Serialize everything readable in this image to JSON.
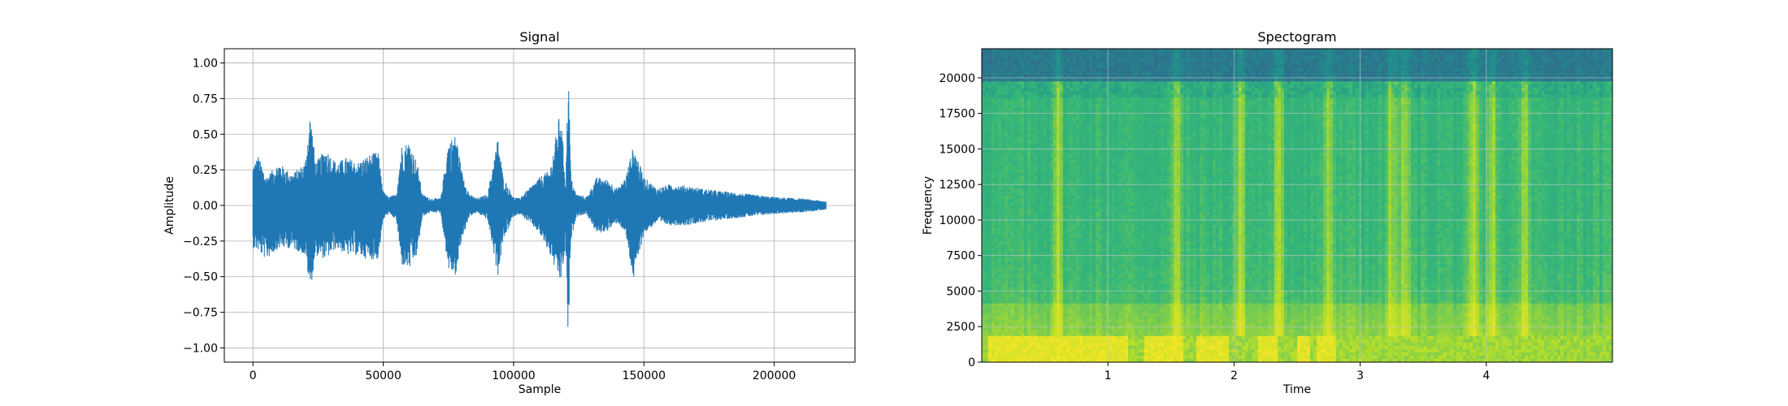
{
  "chart_data": [
    {
      "type": "line",
      "title": "Signal",
      "xlabel": "Sample",
      "ylabel": "Amplitude",
      "xlim": [
        -11000,
        231000
      ],
      "ylim": [
        -1.1,
        1.1
      ],
      "xticks": [
        0,
        50000,
        100000,
        150000,
        200000
      ],
      "xtick_labels": [
        "0",
        "50000",
        "100000",
        "150000",
        "200000"
      ],
      "yticks": [
        -1.0,
        -0.75,
        -0.5,
        -0.25,
        0.0,
        0.25,
        0.5,
        0.75,
        1.0
      ],
      "ytick_labels": [
        "−1.00",
        "−0.75",
        "−0.50",
        "−0.25",
        "0.00",
        "0.25",
        "0.50",
        "0.75",
        "1.00"
      ],
      "grid": true,
      "color": "#1f77b4",
      "envelope": {
        "x": [
          0,
          2000,
          5000,
          10000,
          15000,
          20000,
          22000,
          24000,
          28000,
          32000,
          36000,
          40000,
          44000,
          48000,
          50000,
          52000,
          55000,
          57000,
          60000,
          63000,
          65000,
          68000,
          72000,
          75000,
          78000,
          80000,
          83000,
          86000,
          90000,
          94000,
          96000,
          100000,
          102000,
          106000,
          110000,
          114000,
          118000,
          120000,
          121000,
          122000,
          124000,
          128000,
          132000,
          136000,
          140000,
          143000,
          146000,
          150000,
          155000,
          160000,
          166000,
          172000,
          180000,
          190000,
          200000,
          210000,
          220000
        ],
        "upper": [
          0.28,
          0.35,
          0.2,
          0.3,
          0.22,
          0.3,
          0.66,
          0.3,
          0.4,
          0.3,
          0.34,
          0.3,
          0.35,
          0.38,
          0.1,
          0.06,
          0.08,
          0.42,
          0.45,
          0.3,
          0.08,
          0.05,
          0.05,
          0.45,
          0.5,
          0.25,
          0.08,
          0.05,
          0.08,
          0.48,
          0.2,
          0.06,
          0.05,
          0.12,
          0.2,
          0.25,
          0.68,
          0.15,
          1.0,
          0.2,
          0.08,
          0.06,
          0.2,
          0.18,
          0.12,
          0.2,
          0.42,
          0.2,
          0.12,
          0.15,
          0.14,
          0.12,
          0.1,
          0.08,
          0.06,
          0.05,
          0.03
        ],
        "lower": [
          -0.3,
          -0.32,
          -0.38,
          -0.3,
          -0.3,
          -0.35,
          -0.6,
          -0.35,
          -0.38,
          -0.3,
          -0.35,
          -0.35,
          -0.38,
          -0.38,
          -0.1,
          -0.06,
          -0.1,
          -0.42,
          -0.45,
          -0.35,
          -0.08,
          -0.05,
          -0.05,
          -0.45,
          -0.5,
          -0.25,
          -0.08,
          -0.05,
          -0.1,
          -0.5,
          -0.25,
          -0.08,
          -0.06,
          -0.12,
          -0.2,
          -0.35,
          -0.55,
          -0.3,
          -1.0,
          -0.25,
          -0.08,
          -0.06,
          -0.2,
          -0.18,
          -0.12,
          -0.2,
          -0.53,
          -0.2,
          -0.12,
          -0.14,
          -0.14,
          -0.12,
          -0.1,
          -0.08,
          -0.06,
          -0.05,
          -0.03
        ]
      }
    },
    {
      "type": "heatmap",
      "title": "Spectogram",
      "xlabel": "Time",
      "ylabel": "Frequency",
      "xlim": [
        0,
        5
      ],
      "ylim": [
        0,
        22050
      ],
      "xticks": [
        1,
        2,
        3,
        4
      ],
      "xtick_labels": [
        "1",
        "2",
        "3",
        "4"
      ],
      "yticks": [
        0,
        2500,
        5000,
        7500,
        10000,
        12500,
        15000,
        17500,
        20000
      ],
      "ytick_labels": [
        "0",
        "2500",
        "5000",
        "7500",
        "10000",
        "12500",
        "15000",
        "17500",
        "20000"
      ],
      "grid": true,
      "colormap": "viridis",
      "colors": {
        "low": "#31688e",
        "mid": "#21918c",
        "midhigh": "#35b779",
        "high": "#b5de2b",
        "peak": "#fde725"
      },
      "bright_time_bands": [
        0.6,
        1.55,
        2.05,
        2.35,
        2.75,
        3.25,
        3.35,
        3.9,
        4.05,
        4.3
      ],
      "low_freq_blobs": [
        [
          0.05,
          1.15
        ],
        [
          1.3,
          1.6
        ],
        [
          1.7,
          1.95
        ],
        [
          2.2,
          2.35
        ],
        [
          2.5,
          2.6
        ],
        [
          2.65,
          2.8
        ]
      ]
    }
  ]
}
